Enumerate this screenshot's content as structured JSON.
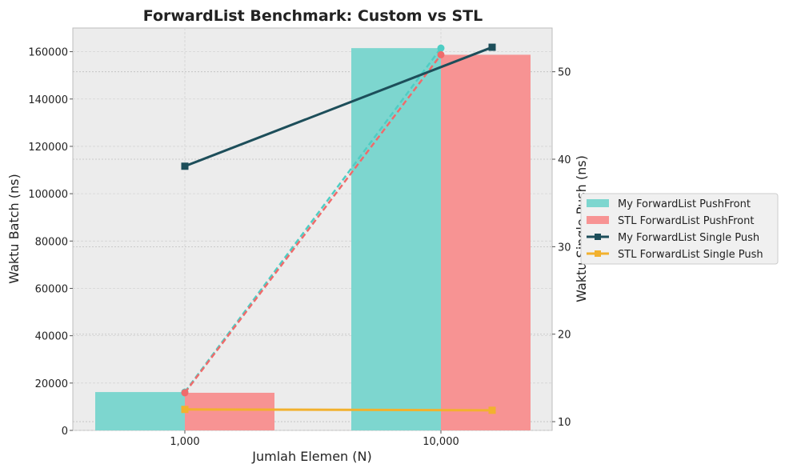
{
  "chart_data": {
    "type": "bar",
    "title": "ForwardList Benchmark: Custom vs STL",
    "xlabel": "Jumlah Elemen (N)",
    "ylabel": "Waktu Batch (ns)",
    "y2label": "Waktu Single Push (ns)",
    "categories": [
      "1,000",
      "10,000"
    ],
    "ylim": [
      0,
      170000
    ],
    "y2lim": [
      9,
      55
    ],
    "yticks": [
      "0",
      "20000",
      "40000",
      "60000",
      "80000",
      "100000",
      "120000",
      "140000",
      "160000"
    ],
    "y2ticks": [
      "10",
      "20",
      "30",
      "40",
      "50"
    ],
    "grid": true,
    "legend_position": "right",
    "bar_series": [
      {
        "name": "My ForwardList PushFront",
        "values": [
          16200,
          161500
        ],
        "color": "#7dd6cf"
      },
      {
        "name": "STL ForwardList PushFront",
        "values": [
          15900,
          158700
        ],
        "color": "#f79393"
      }
    ],
    "dashed_series": [
      {
        "values": [
          16200,
          161500
        ],
        "color": "#4ecdc4"
      },
      {
        "values": [
          15900,
          158700
        ],
        "color": "#ef6b6b"
      }
    ],
    "line_series": [
      {
        "name": "My ForwardList Single Push",
        "values": [
          39.2,
          52.8
        ],
        "color": "#1d4e5a",
        "marker": "square",
        "axis": "right"
      },
      {
        "name": "STL ForwardList Single Push",
        "values": [
          11.4,
          11.3
        ],
        "color": "#f2b12e",
        "marker": "square",
        "axis": "right"
      }
    ]
  }
}
